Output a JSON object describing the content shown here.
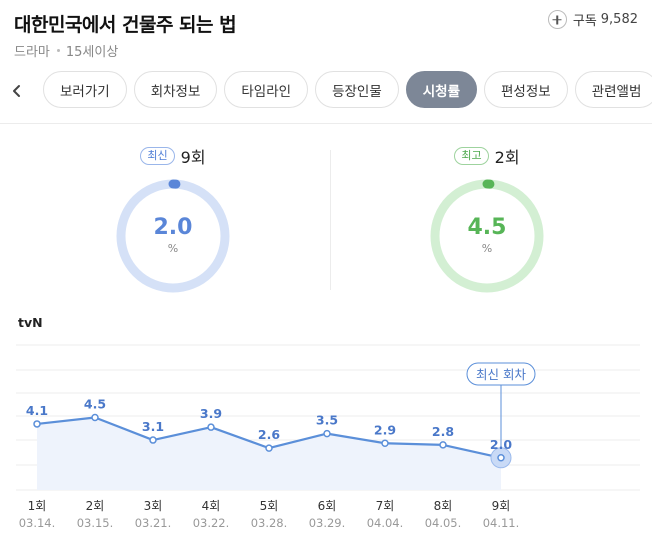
{
  "header": {
    "title": "대한민국에서 건물주 되는 법",
    "genre": "드라마",
    "age_rating": "15세이상",
    "subscribe_label": "구독",
    "subscribe_count": "9,582"
  },
  "tabs": [
    {
      "label": "보러가기",
      "active": false
    },
    {
      "label": "회차정보",
      "active": false
    },
    {
      "label": "타임라인",
      "active": false
    },
    {
      "label": "등장인물",
      "active": false
    },
    {
      "label": "시청률",
      "active": true
    },
    {
      "label": "편성정보",
      "active": false
    },
    {
      "label": "관련앨범",
      "active": false
    }
  ],
  "latest": {
    "badge": "최신",
    "episode": "9회",
    "value": "2.0",
    "unit": "%",
    "color": "#5a86d8",
    "track": "#d5e1f7"
  },
  "best": {
    "badge": "최고",
    "episode": "2회",
    "value": "4.5",
    "unit": "%",
    "color": "#57b557",
    "track": "#d3efd3"
  },
  "channel": "tvN",
  "latest_callout": "최신 회차",
  "chart_data": {
    "type": "line",
    "categories": [
      "1회",
      "2회",
      "3회",
      "4회",
      "5회",
      "6회",
      "7회",
      "8회",
      "9회"
    ],
    "dates": [
      "03.14.",
      "03.15.",
      "03.21.",
      "03.22.",
      "03.28.",
      "03.29.",
      "04.04.",
      "04.05.",
      "04.11."
    ],
    "series": [
      {
        "values": [
          4.1,
          4.5,
          3.1,
          3.9,
          2.6,
          3.5,
          2.9,
          2.8,
          2.0
        ],
        "color": "#5b8fd9"
      }
    ],
    "labels": [
      "4.1",
      "4.5",
      "3.1",
      "3.9",
      "2.6",
      "3.5",
      "2.9",
      "2.8",
      "2.0"
    ],
    "ylim": [
      0,
      9
    ],
    "grid": true,
    "area_fill": "#eef3fc"
  }
}
